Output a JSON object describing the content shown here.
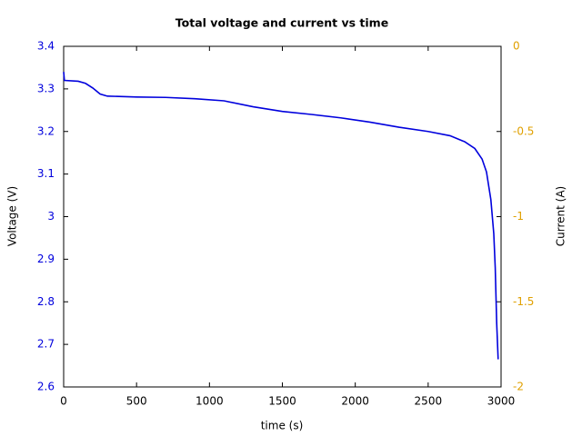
{
  "chart_data": {
    "type": "line",
    "title": "Total voltage and current vs time",
    "xlabel": "time (s)",
    "ylabel": "Voltage (V)",
    "y2label": "Current (A)",
    "x": [
      0,
      5,
      100,
      150,
      200,
      250,
      300,
      500,
      700,
      900,
      1100,
      1300,
      1500,
      1700,
      1900,
      2100,
      2300,
      2500,
      2650,
      2750,
      2820,
      2870,
      2900,
      2930,
      2950,
      2960,
      2970,
      2980
    ],
    "series": [
      {
        "color": "#0000dd",
        "values": [
          3.34,
          3.32,
          3.318,
          3.313,
          3.302,
          3.288,
          3.283,
          3.281,
          3.28,
          3.277,
          3.272,
          3.258,
          3.247,
          3.24,
          3.232,
          3.222,
          3.21,
          3.2,
          3.19,
          3.176,
          3.16,
          3.135,
          3.105,
          3.04,
          2.96,
          2.88,
          2.75,
          2.665
        ]
      }
    ],
    "xlim": [
      0,
      3000
    ],
    "xticks": [
      0,
      500,
      1000,
      1500,
      2000,
      2500,
      3000
    ],
    "ylim": [
      2.6,
      3.4
    ],
    "yticks": [
      2.6,
      2.7,
      2.8,
      2.9,
      3,
      3.1,
      3.2,
      3.3,
      3.4
    ],
    "y2lim": [
      -2,
      0
    ],
    "y2ticks": [
      0,
      -0.5,
      -1,
      -1.5,
      -2
    ]
  }
}
